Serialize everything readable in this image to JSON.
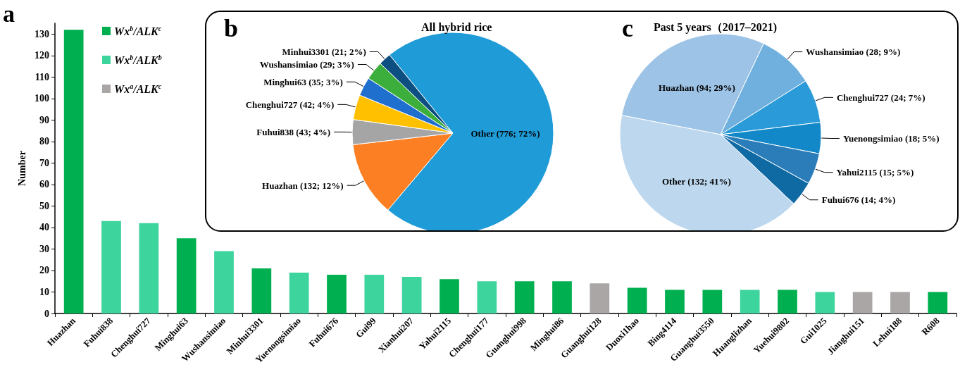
{
  "chart_data": [
    {
      "type": "bar",
      "stacked": true,
      "ylabel": "Number",
      "annotations": [
        "a"
      ],
      "legend": "top left",
      "ylim": [
        0,
        135
      ],
      "yticks": [
        0,
        10,
        20,
        30,
        40,
        50,
        60,
        70,
        80,
        90,
        100,
        110,
        120,
        130
      ],
      "categories": [
        "Huazhan",
        "Fuhui838",
        "Chenghui727",
        "Minghui63",
        "Wushansimiao",
        "Minhui3301",
        "Yuenongsimiao",
        "Fuhui676",
        "Gui99",
        "Xianhui207",
        "Yahui2115",
        "Chenghui177",
        "Guanghui998",
        "Minghui86",
        "Guanghui128",
        "Duoxi1hao",
        "Bing4114",
        "Guanghui3550",
        "Huanglizhan",
        "Yuehui9802",
        "Gui1025",
        "Jianghui151",
        "Lehui188",
        "R608"
      ],
      "series": [
        {
          "name": "Wx$^{b}$/ALK$^{c}$",
          "color": "#00b050",
          "values": [
            132,
            null,
            null,
            35,
            null,
            21,
            null,
            18,
            null,
            null,
            16,
            null,
            15,
            15,
            null,
            12,
            11,
            11,
            null,
            11,
            null,
            null,
            null,
            10
          ]
        },
        {
          "name": "Wx$^{b}$/ALK$^{b}$",
          "color": "#3dd49e",
          "values": [
            null,
            43,
            42,
            null,
            29,
            null,
            19,
            null,
            18,
            17,
            null,
            15,
            null,
            null,
            null,
            null,
            null,
            null,
            11,
            null,
            10,
            null,
            null,
            null
          ]
        },
        {
          "name": "Wx$^{a}$/ALK$^{c}$",
          "color": "#aaa6a6",
          "values": [
            null,
            null,
            null,
            null,
            null,
            null,
            null,
            null,
            null,
            null,
            null,
            null,
            null,
            null,
            14,
            null,
            null,
            null,
            null,
            null,
            null,
            10,
            10,
            null
          ]
        }
      ]
    },
    {
      "type": "pie",
      "title": "All hybrid rice",
      "annotations": [
        "b"
      ],
      "categories": [
        "Other (776; 72%)",
        "Huazhan (132; 12%)",
        "Fuhui838 (43; 4%)",
        "Chenghui727 (42; 4%)",
        "Minghui63 (35; 3%)",
        "Wushansimiao (29; 3%)",
        "Minhui3301 (21; 2%)"
      ],
      "values": [
        72,
        12,
        4,
        4,
        3,
        3,
        2
      ],
      "colors": [
        "#1f9bd7",
        "#fd7f23",
        "#a5a5a5",
        "#ffc000",
        "#1f6fcf",
        "#3cae3c",
        "#0c4f80"
      ]
    },
    {
      "type": "pie",
      "title": "Past 5 years（2017–2021)",
      "annotations": [
        "c"
      ],
      "categories": [
        "Huazhan (94; 29%)",
        "Wushansimiao (28; 9%)",
        "Chenghui727 (24; 7%)",
        "Yuenongsimiao (18; 5%)",
        "Yahui2115 (15; 5%)",
        "Fuhui676 (14; 4%)",
        "Other (132; 41%)"
      ],
      "values": [
        29,
        9,
        7,
        5,
        5,
        4,
        41
      ],
      "colors": [
        "#9dc3e6",
        "#6fb0df",
        "#2a9bd8",
        "#1288c9",
        "#2a7db8",
        "#0f6aa3",
        "#bdd7ee"
      ]
    }
  ]
}
